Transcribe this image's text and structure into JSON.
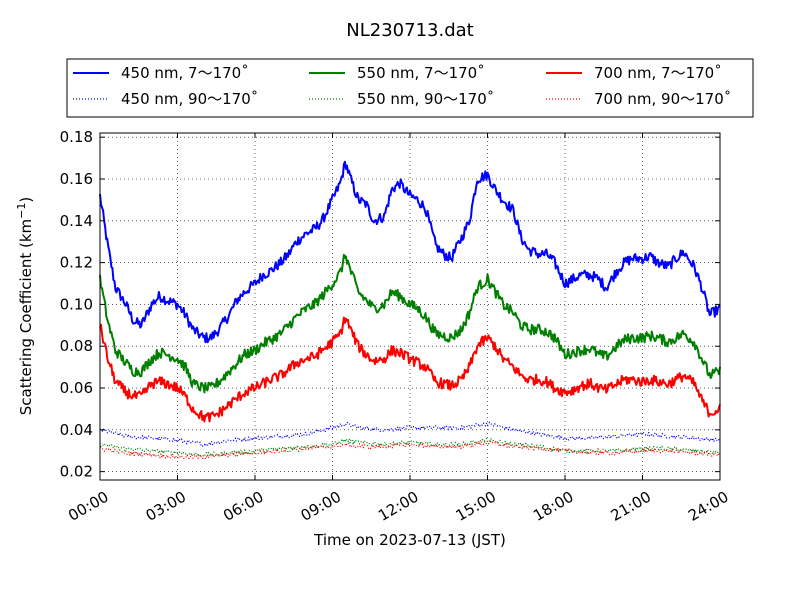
{
  "chart_data": {
    "type": "line",
    "title": "NL230713.dat",
    "xlabel": "Time on 2023-07-13 (JST)",
    "ylabel": "Scattering Coefficient (km",
    "ylabel_sup": "−1",
    "ylabel_close": ")",
    "xlim": [
      0,
      24
    ],
    "ylim": [
      0.016,
      0.182
    ],
    "grid": true,
    "legend_position": "top (above axes)",
    "x_ticks": [
      0,
      3,
      6,
      9,
      12,
      15,
      18,
      21,
      24
    ],
    "x_tick_labels": [
      "00:00",
      "03:00",
      "06:00",
      "09:00",
      "12:00",
      "15:00",
      "18:00",
      "21:00",
      "24:00"
    ],
    "y_ticks": [
      0.02,
      0.04,
      0.06,
      0.08,
      0.1,
      0.12,
      0.14,
      0.16,
      0.18
    ],
    "y_tick_labels": [
      "0.02",
      "0.04",
      "0.06",
      "0.08",
      "0.10",
      "0.12",
      "0.14",
      "0.16",
      "0.18"
    ],
    "colors": {
      "450": "#0000ff",
      "550": "#008000",
      "700": "#ff0000"
    },
    "series": [
      {
        "name": "450 nm, 7～170˚",
        "color": "#0000ff",
        "style": "solid",
        "points": [
          [
            0,
            0.152
          ],
          [
            0.3,
            0.128
          ],
          [
            0.6,
            0.108
          ],
          [
            1,
            0.1
          ],
          [
            1.3,
            0.092
          ],
          [
            1.6,
            0.09
          ],
          [
            2,
            0.1
          ],
          [
            2.3,
            0.104
          ],
          [
            2.6,
            0.102
          ],
          [
            3,
            0.1
          ],
          [
            3.3,
            0.095
          ],
          [
            3.6,
            0.088
          ],
          [
            4,
            0.084
          ],
          [
            4.3,
            0.084
          ],
          [
            4.6,
            0.088
          ],
          [
            5,
            0.095
          ],
          [
            5.3,
            0.102
          ],
          [
            5.6,
            0.106
          ],
          [
            6,
            0.11
          ],
          [
            6.3,
            0.114
          ],
          [
            6.6,
            0.116
          ],
          [
            7,
            0.12
          ],
          [
            7.3,
            0.124
          ],
          [
            7.6,
            0.13
          ],
          [
            8,
            0.134
          ],
          [
            8.3,
            0.136
          ],
          [
            8.6,
            0.14
          ],
          [
            9,
            0.15
          ],
          [
            9.3,
            0.158
          ],
          [
            9.5,
            0.168
          ],
          [
            9.7,
            0.16
          ],
          [
            10,
            0.15
          ],
          [
            10.3,
            0.148
          ],
          [
            10.6,
            0.14
          ],
          [
            11,
            0.142
          ],
          [
            11.3,
            0.155
          ],
          [
            11.6,
            0.158
          ],
          [
            12,
            0.152
          ],
          [
            12.3,
            0.15
          ],
          [
            12.6,
            0.146
          ],
          [
            13,
            0.128
          ],
          [
            13.3,
            0.124
          ],
          [
            13.6,
            0.122
          ],
          [
            14,
            0.132
          ],
          [
            14.3,
            0.14
          ],
          [
            14.6,
            0.16
          ],
          [
            15,
            0.162
          ],
          [
            15.3,
            0.155
          ],
          [
            15.6,
            0.15
          ],
          [
            16,
            0.145
          ],
          [
            16.3,
            0.132
          ],
          [
            16.6,
            0.126
          ],
          [
            17,
            0.124
          ],
          [
            17.3,
            0.124
          ],
          [
            17.6,
            0.12
          ],
          [
            18,
            0.11
          ],
          [
            18.3,
            0.112
          ],
          [
            18.6,
            0.114
          ],
          [
            19,
            0.114
          ],
          [
            19.3,
            0.112
          ],
          [
            19.6,
            0.108
          ],
          [
            20,
            0.116
          ],
          [
            20.3,
            0.12
          ],
          [
            20.6,
            0.122
          ],
          [
            21,
            0.122
          ],
          [
            21.3,
            0.123
          ],
          [
            21.6,
            0.12
          ],
          [
            22,
            0.118
          ],
          [
            22.3,
            0.122
          ],
          [
            22.6,
            0.125
          ],
          [
            23,
            0.118
          ],
          [
            23.3,
            0.108
          ],
          [
            23.6,
            0.095
          ],
          [
            24,
            0.098
          ]
        ]
      },
      {
        "name": "450 nm, 90～170˚",
        "color": "#0000ff",
        "style": "dotted",
        "points": [
          [
            0,
            0.04
          ],
          [
            1,
            0.037
          ],
          [
            2,
            0.036
          ],
          [
            3,
            0.035
          ],
          [
            4,
            0.033
          ],
          [
            5,
            0.035
          ],
          [
            6,
            0.036
          ],
          [
            7,
            0.037
          ],
          [
            8,
            0.038
          ],
          [
            9,
            0.041
          ],
          [
            9.5,
            0.043
          ],
          [
            10,
            0.041
          ],
          [
            11,
            0.04
          ],
          [
            12,
            0.041
          ],
          [
            13,
            0.041
          ],
          [
            14,
            0.041
          ],
          [
            15,
            0.043
          ],
          [
            16,
            0.04
          ],
          [
            17,
            0.038
          ],
          [
            18,
            0.036
          ],
          [
            19,
            0.036
          ],
          [
            20,
            0.037
          ],
          [
            21,
            0.038
          ],
          [
            22,
            0.037
          ],
          [
            23,
            0.036
          ],
          [
            24,
            0.035
          ]
        ]
      },
      {
        "name": "550 nm, 7～170˚",
        "color": "#008000",
        "style": "solid",
        "points": [
          [
            0,
            0.112
          ],
          [
            0.3,
            0.092
          ],
          [
            0.6,
            0.078
          ],
          [
            1,
            0.072
          ],
          [
            1.3,
            0.068
          ],
          [
            1.6,
            0.068
          ],
          [
            2,
            0.074
          ],
          [
            2.3,
            0.077
          ],
          [
            2.6,
            0.076
          ],
          [
            3,
            0.074
          ],
          [
            3.3,
            0.07
          ],
          [
            3.6,
            0.062
          ],
          [
            4,
            0.06
          ],
          [
            4.3,
            0.06
          ],
          [
            4.6,
            0.063
          ],
          [
            5,
            0.068
          ],
          [
            5.3,
            0.072
          ],
          [
            5.6,
            0.076
          ],
          [
            6,
            0.078
          ],
          [
            6.3,
            0.081
          ],
          [
            6.6,
            0.083
          ],
          [
            7,
            0.086
          ],
          [
            7.3,
            0.09
          ],
          [
            7.6,
            0.094
          ],
          [
            8,
            0.098
          ],
          [
            8.3,
            0.1
          ],
          [
            8.6,
            0.104
          ],
          [
            9,
            0.11
          ],
          [
            9.3,
            0.115
          ],
          [
            9.5,
            0.124
          ],
          [
            9.7,
            0.116
          ],
          [
            10,
            0.106
          ],
          [
            10.3,
            0.102
          ],
          [
            10.6,
            0.098
          ],
          [
            11,
            0.1
          ],
          [
            11.3,
            0.106
          ],
          [
            11.6,
            0.104
          ],
          [
            12,
            0.1
          ],
          [
            12.3,
            0.098
          ],
          [
            12.6,
            0.094
          ],
          [
            13,
            0.086
          ],
          [
            13.3,
            0.085
          ],
          [
            13.6,
            0.084
          ],
          [
            14,
            0.088
          ],
          [
            14.3,
            0.096
          ],
          [
            14.6,
            0.108
          ],
          [
            15,
            0.112
          ],
          [
            15.3,
            0.106
          ],
          [
            15.6,
            0.1
          ],
          [
            16,
            0.096
          ],
          [
            16.3,
            0.09
          ],
          [
            16.6,
            0.088
          ],
          [
            17,
            0.088
          ],
          [
            17.3,
            0.087
          ],
          [
            17.6,
            0.084
          ],
          [
            18,
            0.076
          ],
          [
            18.3,
            0.077
          ],
          [
            18.6,
            0.078
          ],
          [
            19,
            0.079
          ],
          [
            19.3,
            0.076
          ],
          [
            19.6,
            0.075
          ],
          [
            20,
            0.08
          ],
          [
            20.3,
            0.083
          ],
          [
            20.6,
            0.084
          ],
          [
            21,
            0.084
          ],
          [
            21.3,
            0.085
          ],
          [
            21.6,
            0.084
          ],
          [
            22,
            0.082
          ],
          [
            22.3,
            0.084
          ],
          [
            22.6,
            0.086
          ],
          [
            23,
            0.082
          ],
          [
            23.3,
            0.074
          ],
          [
            23.6,
            0.066
          ],
          [
            24,
            0.068
          ]
        ]
      },
      {
        "name": "550 nm, 90～170˚",
        "color": "#008000",
        "style": "dotted",
        "points": [
          [
            0,
            0.033
          ],
          [
            1,
            0.031
          ],
          [
            2,
            0.03
          ],
          [
            3,
            0.029
          ],
          [
            4,
            0.028
          ],
          [
            5,
            0.029
          ],
          [
            6,
            0.03
          ],
          [
            7,
            0.031
          ],
          [
            8,
            0.032
          ],
          [
            9,
            0.033
          ],
          [
            9.5,
            0.035
          ],
          [
            10,
            0.034
          ],
          [
            11,
            0.033
          ],
          [
            12,
            0.034
          ],
          [
            13,
            0.033
          ],
          [
            14,
            0.033
          ],
          [
            15,
            0.035
          ],
          [
            16,
            0.033
          ],
          [
            17,
            0.032
          ],
          [
            18,
            0.03
          ],
          [
            19,
            0.03
          ],
          [
            20,
            0.03
          ],
          [
            21,
            0.031
          ],
          [
            22,
            0.031
          ],
          [
            23,
            0.03
          ],
          [
            24,
            0.029
          ]
        ]
      },
      {
        "name": "700 nm, 7～170˚",
        "color": "#ff0000",
        "style": "solid",
        "points": [
          [
            0,
            0.09
          ],
          [
            0.3,
            0.074
          ],
          [
            0.6,
            0.063
          ],
          [
            1,
            0.058
          ],
          [
            1.3,
            0.056
          ],
          [
            1.6,
            0.056
          ],
          [
            2,
            0.062
          ],
          [
            2.3,
            0.063
          ],
          [
            2.6,
            0.062
          ],
          [
            3,
            0.06
          ],
          [
            3.3,
            0.056
          ],
          [
            3.6,
            0.05
          ],
          [
            4,
            0.046
          ],
          [
            4.3,
            0.046
          ],
          [
            4.6,
            0.048
          ],
          [
            5,
            0.052
          ],
          [
            5.3,
            0.055
          ],
          [
            5.6,
            0.058
          ],
          [
            6,
            0.06
          ],
          [
            6.3,
            0.062
          ],
          [
            6.6,
            0.064
          ],
          [
            7,
            0.066
          ],
          [
            7.3,
            0.069
          ],
          [
            7.6,
            0.072
          ],
          [
            8,
            0.074
          ],
          [
            8.3,
            0.075
          ],
          [
            8.6,
            0.078
          ],
          [
            9,
            0.082
          ],
          [
            9.3,
            0.086
          ],
          [
            9.5,
            0.094
          ],
          [
            9.7,
            0.088
          ],
          [
            10,
            0.08
          ],
          [
            10.3,
            0.076
          ],
          [
            10.6,
            0.073
          ],
          [
            11,
            0.074
          ],
          [
            11.3,
            0.078
          ],
          [
            11.6,
            0.077
          ],
          [
            12,
            0.074
          ],
          [
            12.3,
            0.072
          ],
          [
            12.6,
            0.07
          ],
          [
            13,
            0.063
          ],
          [
            13.3,
            0.062
          ],
          [
            13.6,
            0.061
          ],
          [
            14,
            0.064
          ],
          [
            14.3,
            0.07
          ],
          [
            14.6,
            0.08
          ],
          [
            15,
            0.084
          ],
          [
            15.3,
            0.08
          ],
          [
            15.6,
            0.074
          ],
          [
            16,
            0.07
          ],
          [
            16.3,
            0.066
          ],
          [
            16.6,
            0.064
          ],
          [
            17,
            0.064
          ],
          [
            17.3,
            0.063
          ],
          [
            17.6,
            0.06
          ],
          [
            18,
            0.058
          ],
          [
            18.3,
            0.059
          ],
          [
            18.6,
            0.061
          ],
          [
            19,
            0.062
          ],
          [
            19.3,
            0.06
          ],
          [
            19.6,
            0.059
          ],
          [
            20,
            0.062
          ],
          [
            20.3,
            0.064
          ],
          [
            20.6,
            0.064
          ],
          [
            21,
            0.063
          ],
          [
            21.3,
            0.064
          ],
          [
            21.6,
            0.063
          ],
          [
            22,
            0.062
          ],
          [
            22.3,
            0.064
          ],
          [
            22.6,
            0.066
          ],
          [
            23,
            0.062
          ],
          [
            23.3,
            0.054
          ],
          [
            23.6,
            0.048
          ],
          [
            24,
            0.05
          ]
        ]
      },
      {
        "name": "700 nm, 90～170˚",
        "color": "#ff0000",
        "style": "dotted",
        "points": [
          [
            0,
            0.031
          ],
          [
            1,
            0.029
          ],
          [
            2,
            0.028
          ],
          [
            3,
            0.027
          ],
          [
            4,
            0.027
          ],
          [
            5,
            0.028
          ],
          [
            6,
            0.029
          ],
          [
            7,
            0.03
          ],
          [
            8,
            0.031
          ],
          [
            9,
            0.032
          ],
          [
            9.5,
            0.033
          ],
          [
            10,
            0.032
          ],
          [
            11,
            0.032
          ],
          [
            12,
            0.033
          ],
          [
            13,
            0.032
          ],
          [
            14,
            0.032
          ],
          [
            15,
            0.034
          ],
          [
            16,
            0.032
          ],
          [
            17,
            0.031
          ],
          [
            18,
            0.03
          ],
          [
            19,
            0.029
          ],
          [
            20,
            0.029
          ],
          [
            21,
            0.03
          ],
          [
            22,
            0.03
          ],
          [
            23,
            0.029
          ],
          [
            24,
            0.028
          ]
        ]
      }
    ]
  }
}
